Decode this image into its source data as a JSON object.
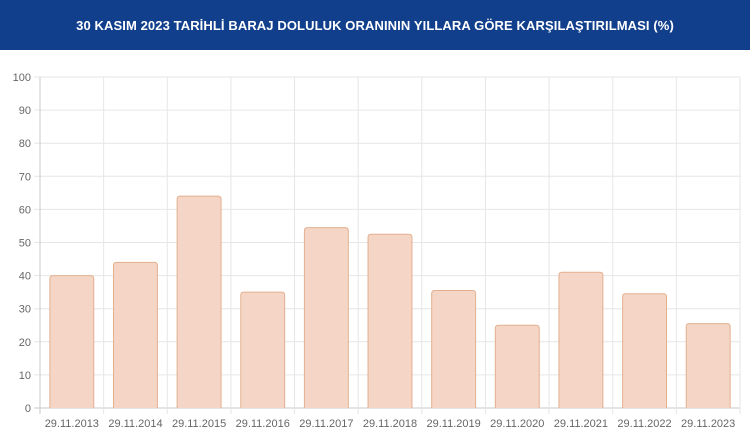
{
  "header": {
    "title": "30 KASIM 2023 TARİHLİ BARAJ DOLULUK ORANININ YILLARA GÖRE KARŞILAŞTIRILMASI (%)"
  },
  "colors": {
    "header_bg": "#123f8c",
    "bar_fill": "#f5d5c5",
    "bar_stroke": "#e3b08f",
    "grid": "#e6e6e6",
    "axis": "#c8c8c8"
  },
  "chart_data": {
    "type": "bar",
    "title": "30 KASIM 2023 TARİHLİ BARAJ DOLULUK ORANININ YILLARA GÖRE KARŞILAŞTIRILMASI (%)",
    "categories": [
      "29.11.2013",
      "29.11.2014",
      "29.11.2015",
      "29.11.2016",
      "29.11.2017",
      "29.11.2018",
      "29.11.2019",
      "29.11.2020",
      "29.11.2021",
      "29.11.2022",
      "29.11.2023"
    ],
    "values": [
      40,
      44,
      64,
      35,
      54.5,
      52.5,
      35.5,
      25,
      41,
      34.5,
      25.5
    ],
    "yticks": [
      "0",
      "10",
      "20",
      "30",
      "40",
      "50",
      "60",
      "70",
      "80",
      "90",
      "100"
    ],
    "ylim": [
      0,
      100
    ],
    "xlabel": "",
    "ylabel": "",
    "grid": true,
    "legend": "none"
  }
}
